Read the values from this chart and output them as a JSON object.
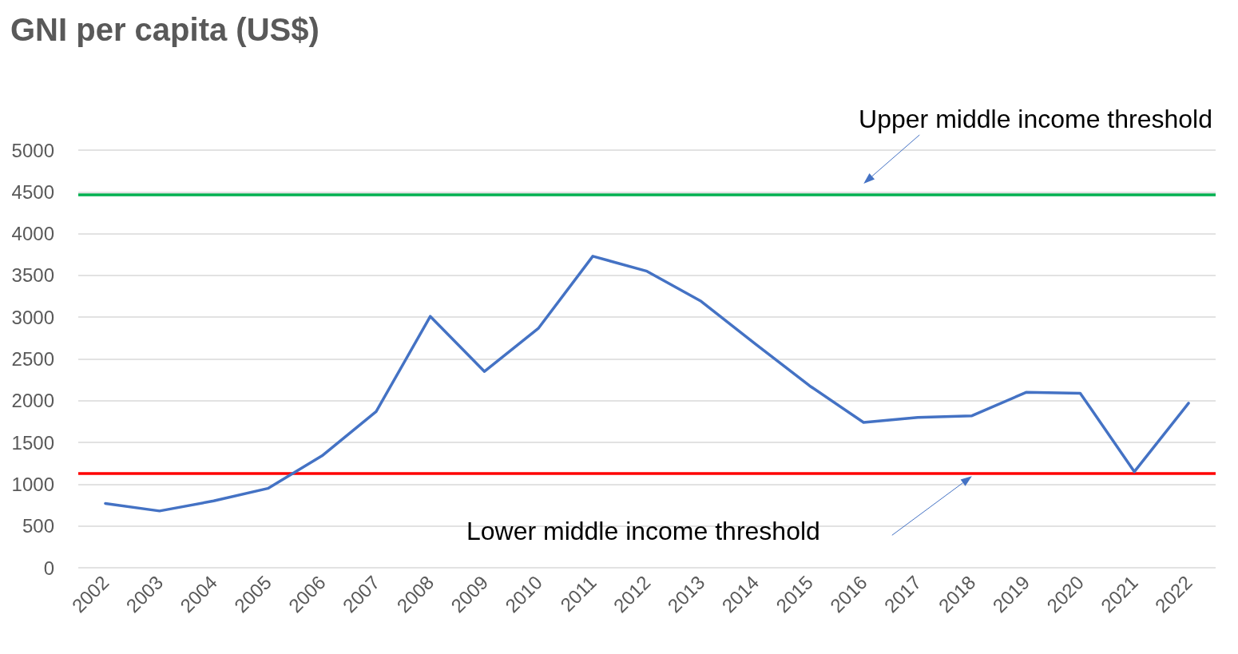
{
  "chart_data": {
    "type": "line",
    "title": "GNI per capita (US$)",
    "categories": [
      "2002",
      "2003",
      "2004",
      "2005",
      "2006",
      "2007",
      "2008",
      "2009",
      "2010",
      "2011",
      "2012",
      "2013",
      "2014",
      "2015",
      "2016",
      "2017",
      "2018",
      "2019",
      "2020",
      "2021",
      "2022"
    ],
    "series": [
      {
        "color": "#4472c4",
        "values": [
          770,
          680,
          800,
          950,
          1340,
          1870,
          3010,
          2350,
          2870,
          3730,
          3550,
          3190,
          2680,
          2180,
          1740,
          1800,
          1820,
          2100,
          2090,
          1150,
          1970
        ]
      }
    ],
    "ylim": [
      0,
      5000
    ],
    "yticks": [
      0,
      500,
      1000,
      1500,
      2000,
      2500,
      3000,
      3500,
      4000,
      4500,
      5000
    ],
    "ref_lines": [
      {
        "axis": "y",
        "value": 4465,
        "label": "Upper middle income threshold",
        "color": "#00b050"
      },
      {
        "axis": "y",
        "value": 1135,
        "label": "Lower middle income threshold",
        "color": "#ff0000"
      }
    ],
    "grid": "y",
    "marker": "none",
    "line_style": "solid"
  }
}
